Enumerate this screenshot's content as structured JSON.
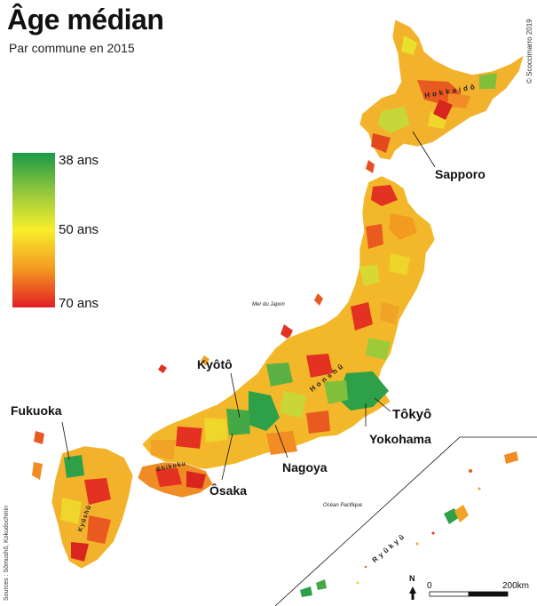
{
  "title": "Âge médian",
  "subtitle": "Par commune en 2015",
  "legend": {
    "top": "38 ans",
    "middle": "50 ans",
    "bottom": "70 ans",
    "colors": [
      "#1a9a46",
      "#f7ee2a",
      "#e31e24"
    ]
  },
  "cities": {
    "sapporo": "Sapporo",
    "tokyo": "Tôkyô",
    "yokohama": "Yokohama",
    "nagoya": "Nagoya",
    "osaka": "Ôsaka",
    "kyoto": "Kyôtô",
    "fukuoka": "Fukuoka"
  },
  "regions": {
    "hokkaido": "Hokkaidô",
    "honshu": "Honshû",
    "shikoku": "Shikoku",
    "kyushu": "Kyûshû",
    "ryukyu": "Ryûkyû"
  },
  "seas": {
    "japan_sea": "Mer du Japon",
    "pacific": "Océan Pacifique"
  },
  "scale": {
    "start": "0",
    "end": "200km"
  },
  "north": "N",
  "credits": {
    "author": "© Scoccimarro 2019",
    "sources": "Sources : Sômushô, Kokudochiriin"
  }
}
